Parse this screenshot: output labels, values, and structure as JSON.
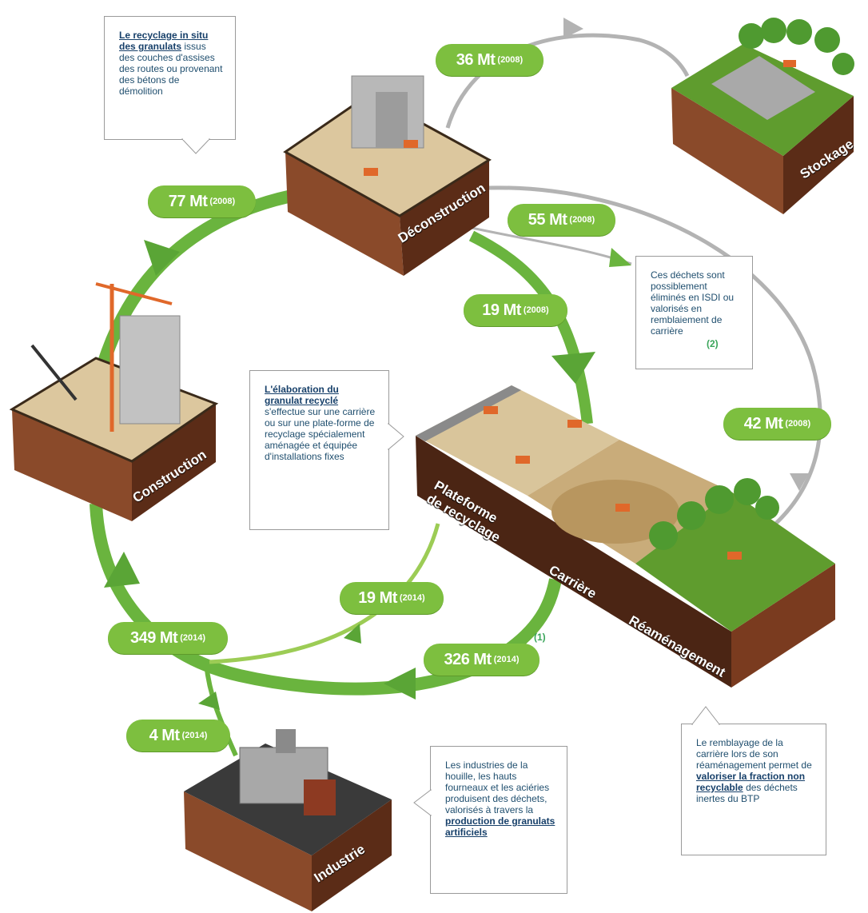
{
  "nodes": [
    "Déconstruction",
    "Stockage",
    "Construction",
    "Plateforme de recyclage",
    "Carrière",
    "Réaménagement",
    "Industrie"
  ],
  "flows": [
    {
      "amount": "36 Mt",
      "year": "(2008)"
    },
    {
      "amount": "77 Mt",
      "year": "(2008)"
    },
    {
      "amount": "55 Mt",
      "year": "(2008)"
    },
    {
      "amount": "19 Mt",
      "year": "(2008)"
    },
    {
      "amount": "42 Mt",
      "year": "(2008)"
    },
    {
      "amount": "19 Mt",
      "year": "(2014)"
    },
    {
      "amount": "349 Mt",
      "year": "(2014)"
    },
    {
      "amount": "326 Mt",
      "year": "(2014)"
    },
    {
      "amount": "4 Mt",
      "year": "(2014)"
    }
  ],
  "callouts": {
    "in_situ": {
      "highlight": "Le recyclage in situ des granulats",
      "text": "issus des couches d'assises des routes ou provenant des bétons de démolition"
    },
    "isdi": {
      "text": "Ces déchets sont possiblement éliminés en ISDI ou valorisés en remblaiement de carrière",
      "note": "(2)"
    },
    "elaboration": {
      "highlight": "L'élaboration du granulat recyclé",
      "text": "s'effectue sur une carrière ou sur une plate-forme de recyclage spécialement aménagée et équipée d'installations fixes"
    },
    "industrie": {
      "text": "Les industries de la houille, les hauts fourneaux et les aciéries produisent des déchets, valorisés à travers la",
      "highlight": "production de granulats artificiels"
    },
    "remblayage": {
      "before": "Le remblayage de la carrière lors de son réaménagement permet de",
      "highlight": "valoriser la fraction non recyclable",
      "after": "des déchets inertes du BTP"
    }
  },
  "notes": [
    "(1)"
  ]
}
